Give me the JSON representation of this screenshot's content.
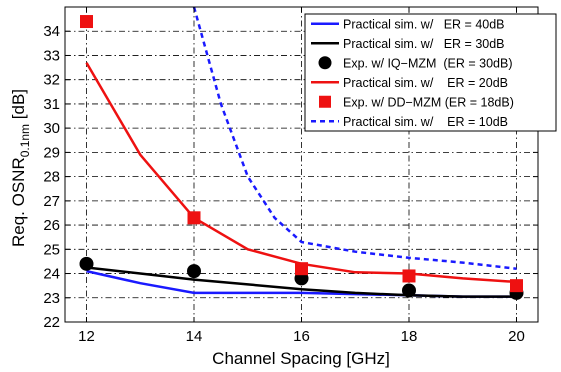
{
  "chart_data": {
    "type": "line",
    "xlabel": "Channel Spacing [GHz]",
    "ylabel": "Req. OSNR",
    "ylabel_subscript": "0.1nm",
    "ylabel_unit": " [dB]",
    "xlim": [
      11.6,
      20.4
    ],
    "ylim": [
      22,
      35
    ],
    "xticks": [
      12,
      14,
      16,
      18,
      20
    ],
    "yticks": [
      22,
      23,
      24,
      25,
      26,
      27,
      28,
      29,
      30,
      31,
      32,
      33,
      34
    ],
    "grid": true,
    "grid_style": "dash-dot",
    "legend_position": "top-right",
    "series": [
      {
        "name": "Practical sim. w/   ER = 40dB",
        "style": "line",
        "color": "#1a1aff",
        "dash": "solid",
        "x": [
          12,
          13,
          14,
          15,
          16,
          17,
          18,
          19,
          20
        ],
        "y": [
          24.1,
          23.6,
          23.2,
          23.2,
          23.2,
          23.15,
          23.1,
          23.05,
          23.05
        ]
      },
      {
        "name": "Practical sim. w/   ER = 30dB",
        "style": "line",
        "color": "#000000",
        "dash": "solid",
        "x": [
          12,
          13,
          14,
          15,
          16,
          17,
          18,
          19,
          20
        ],
        "y": [
          24.25,
          24.0,
          23.75,
          23.55,
          23.35,
          23.2,
          23.1,
          23.05,
          23.05
        ]
      },
      {
        "name": "Exp. w/ IQ−MZM  (ER = 30dB)",
        "style": "marker",
        "marker": "circle",
        "color": "#000000",
        "x": [
          12,
          14,
          16,
          18,
          20
        ],
        "y": [
          24.4,
          24.1,
          23.8,
          23.3,
          23.2
        ]
      },
      {
        "name": "Practical sim. w/    ER = 20dB",
        "style": "line",
        "color": "#ee1111",
        "dash": "solid",
        "x": [
          12,
          13,
          14,
          15,
          16,
          17,
          18,
          19,
          20
        ],
        "y": [
          32.7,
          28.9,
          26.3,
          25.0,
          24.4,
          24.05,
          24.0,
          23.8,
          23.65
        ]
      },
      {
        "name": "Exp. w/ DD−MZM (ER = 18dB)",
        "style": "marker",
        "marker": "square",
        "color": "#ee1111",
        "x": [
          12,
          14,
          16,
          18,
          20
        ],
        "y": [
          34.4,
          26.3,
          24.2,
          23.9,
          23.5
        ]
      },
      {
        "name": "Practical sim. w/    ER = 10dB",
        "style": "line",
        "color": "#1a1aff",
        "dash": "dashed",
        "x": [
          14,
          14.5,
          15,
          15.5,
          16,
          17,
          18,
          19,
          20
        ],
        "y": [
          35,
          31.0,
          28.0,
          26.3,
          25.3,
          24.9,
          24.65,
          24.45,
          24.2
        ]
      }
    ]
  }
}
